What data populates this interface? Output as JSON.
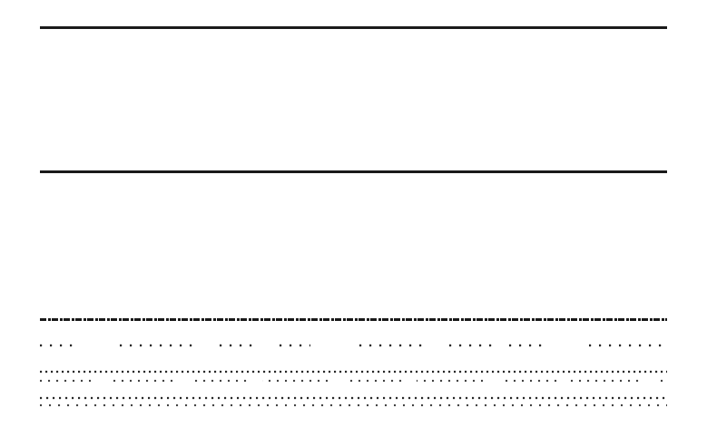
{
  "document": {
    "description_visible_text": [],
    "rule_color": "#1a1a1a",
    "background_color": "#ffffff"
  }
}
